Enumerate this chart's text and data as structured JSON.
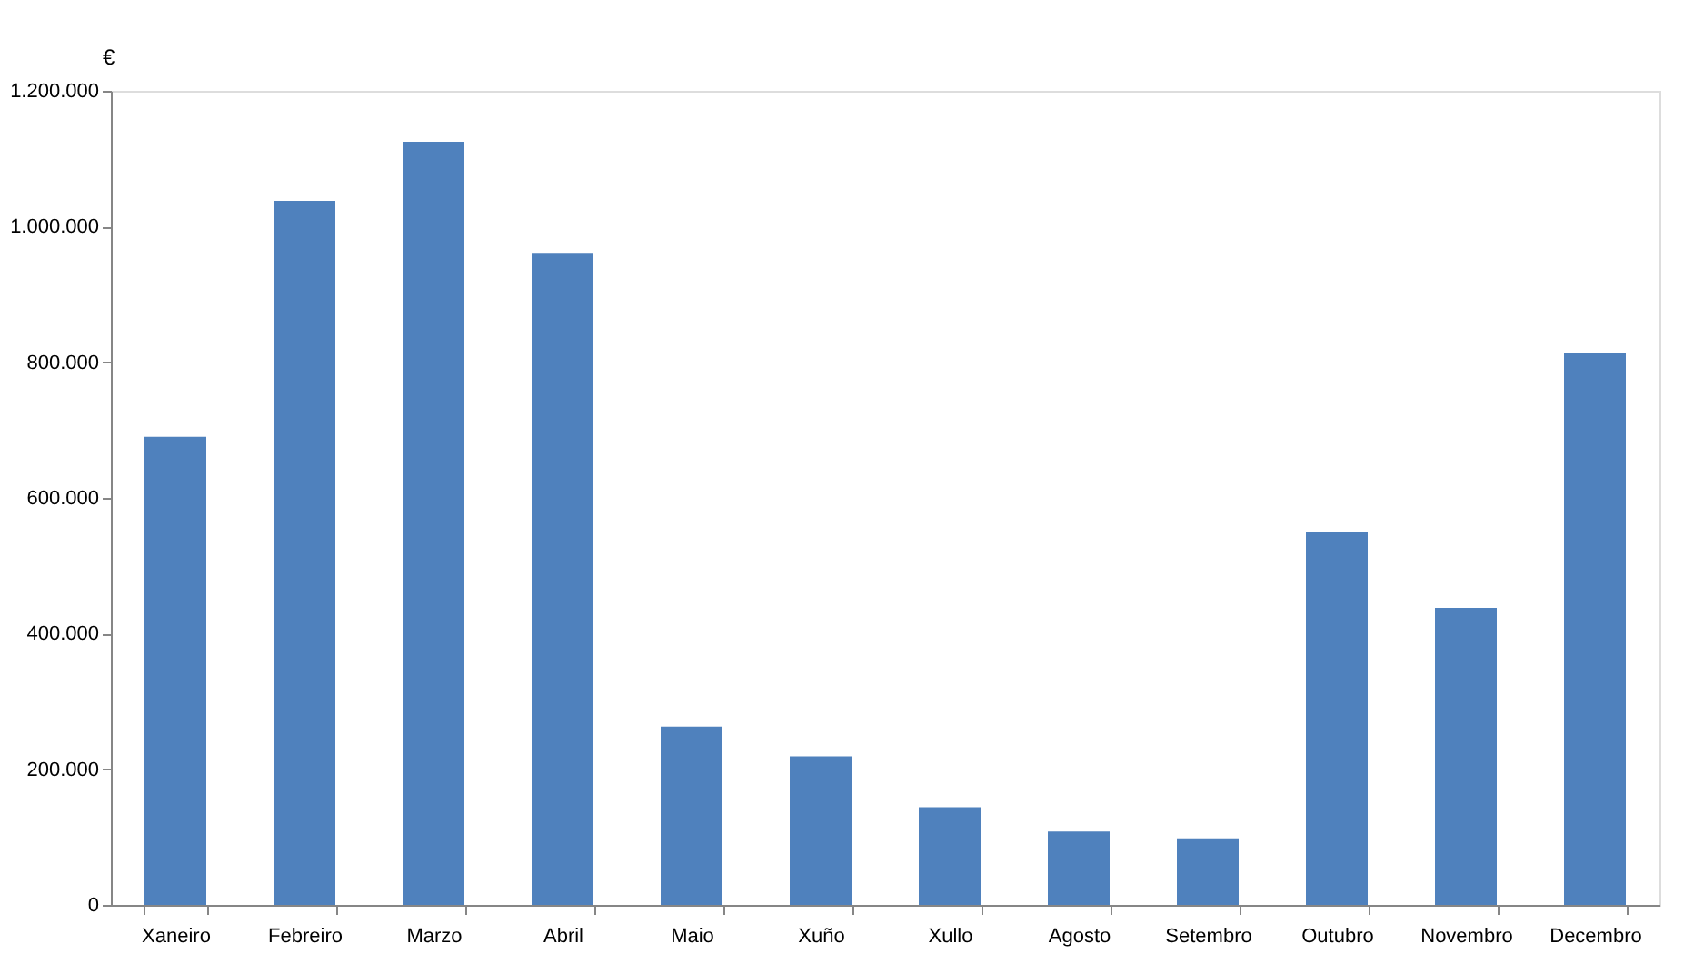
{
  "chart_data": {
    "type": "bar",
    "ylabel": "€",
    "categories": [
      "Xaneiro",
      "Febreiro",
      "Marzo",
      "Abril",
      "Maio",
      "Xuño",
      "Xullo",
      "Agosto",
      "Setembro",
      "Outubro",
      "Novembro",
      "Decembro"
    ],
    "values": [
      690000,
      1038000,
      1125000,
      960000,
      263000,
      219000,
      144000,
      108000,
      98000,
      549000,
      438000,
      814000
    ],
    "color": "#4f81bd",
    "ylim": [
      0,
      1200000
    ],
    "yticks": [
      {
        "value": 0,
        "label": "0"
      },
      {
        "value": 200000,
        "label": "200.000"
      },
      {
        "value": 400000,
        "label": "400.000"
      },
      {
        "value": 600000,
        "label": "600.000"
      },
      {
        "value": 800000,
        "label": "800.000"
      },
      {
        "value": 1000000,
        "label": "1.000.000"
      },
      {
        "value": 1200000,
        "label": "1.200.000"
      }
    ],
    "grid": false
  }
}
